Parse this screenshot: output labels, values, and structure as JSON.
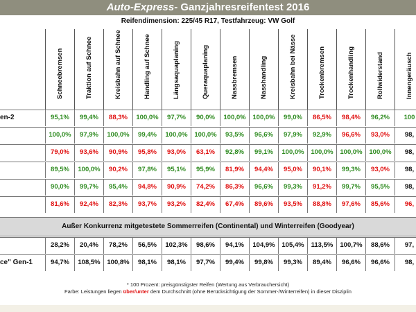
{
  "header": {
    "brand": "Auto-Express-",
    "title": " Ganzjahresreifentest 2016",
    "subtitle": "Reifendimension: 225/45 R17, Testfahrzeug: VW Golf"
  },
  "columns": [
    "Schneebremsen",
    "Traktion auf Schnee",
    "Kreisbahn auf Schnee",
    "Handling auf Schnee",
    "Längsaquaplaning",
    "Queraquaplaning",
    "Nassbremsen",
    "Nasshandling",
    "Kreisbahn bei Nässe",
    "Trockenbremsen",
    "Trockenhandling",
    "Rollwiderstand",
    "Innengeräusch"
  ],
  "rows": [
    {
      "label": "en-2",
      "values": [
        "95,1%",
        "99,4%",
        "88,3%",
        "100,0%",
        "97,7%",
        "90,0%",
        "100,0%",
        "100,0%",
        "99,0%",
        "86,5%",
        "98,4%",
        "96,2%",
        "100"
      ],
      "colors": [
        "g",
        "g",
        "r",
        "g",
        "g",
        "g",
        "g",
        "g",
        "g",
        "r",
        "r",
        "g",
        "g"
      ]
    },
    {
      "label": "",
      "values": [
        "100,0%",
        "97,9%",
        "100,0%",
        "99,4%",
        "100,0%",
        "100,0%",
        "93,5%",
        "96,6%",
        "97,9%",
        "92,9%",
        "96,6%",
        "93,0%",
        "98,"
      ],
      "colors": [
        "g",
        "g",
        "g",
        "g",
        "g",
        "g",
        "g",
        "g",
        "g",
        "g",
        "r",
        "r",
        "b"
      ]
    },
    {
      "label": "",
      "values": [
        "79,0%",
        "93,6%",
        "90,9%",
        "95,8%",
        "93,0%",
        "63,1%",
        "92,8%",
        "99,1%",
        "100,0%",
        "100,0%",
        "100,0%",
        "100,0%",
        "98,"
      ],
      "colors": [
        "r",
        "r",
        "r",
        "r",
        "r",
        "r",
        "g",
        "g",
        "g",
        "g",
        "g",
        "g",
        "b"
      ]
    },
    {
      "label": "",
      "values": [
        "89,5%",
        "100,0%",
        "90,2%",
        "97,8%",
        "95,1%",
        "95,9%",
        "81,9%",
        "94,4%",
        "95,0%",
        "90,1%",
        "99,3%",
        "93,0%",
        "98,"
      ],
      "colors": [
        "g",
        "g",
        "r",
        "g",
        "g",
        "g",
        "r",
        "r",
        "r",
        "r",
        "g",
        "r",
        "b"
      ]
    },
    {
      "label": "",
      "values": [
        "90,0%",
        "99,7%",
        "95,4%",
        "94,8%",
        "90,9%",
        "74,2%",
        "86,3%",
        "96,6%",
        "99,3%",
        "91,2%",
        "99,7%",
        "95,5%",
        "98,"
      ],
      "colors": [
        "g",
        "g",
        "g",
        "r",
        "r",
        "r",
        "r",
        "g",
        "g",
        "r",
        "g",
        "g",
        "b"
      ]
    },
    {
      "label": "",
      "values": [
        "81,6%",
        "92,4%",
        "82,3%",
        "93,7%",
        "93,2%",
        "82,4%",
        "67,4%",
        "89,6%",
        "93,5%",
        "88,8%",
        "97,6%",
        "85,6%",
        "96,"
      ],
      "colors": [
        "r",
        "r",
        "r",
        "r",
        "r",
        "r",
        "r",
        "r",
        "r",
        "r",
        "r",
        "r",
        "r"
      ]
    }
  ],
  "divider_text": "Außer Konkurrenz mitgetestete Sommerreifen (Continental) und Winterreifen (Goodyear)",
  "extra_rows": [
    {
      "label": "",
      "values": [
        "28,2%",
        "20,4%",
        "78,2%",
        "56,5%",
        "102,3%",
        "98,6%",
        "94,1%",
        "104,9%",
        "105,4%",
        "113,5%",
        "100,7%",
        "88,6%",
        "97,"
      ]
    },
    {
      "label": "ce\" Gen-1",
      "values": [
        "94,7%",
        "108,5%",
        "100,8%",
        "98,1%",
        "98,1%",
        "97,7%",
        "99,4%",
        "99,8%",
        "99,3%",
        "89,4%",
        "96,6%",
        "96,6%",
        "98,"
      ]
    }
  ],
  "footnote1": "* 100 Prozent: preisgünstigster Reifen (Wertung aus Verbrauchersicht)",
  "footnote2_pre": "Farbe: Leistungen liegen ",
  "footnote2_red": "über/unter",
  "footnote2_post": " dem Durchschnitt (ohne Berücksichtigung der Sommer-/Winterreifen) in dieser Disziplin",
  "colors": {
    "above": "#2e8b20",
    "below": "#e01010",
    "banner": "#8f8e7e"
  }
}
